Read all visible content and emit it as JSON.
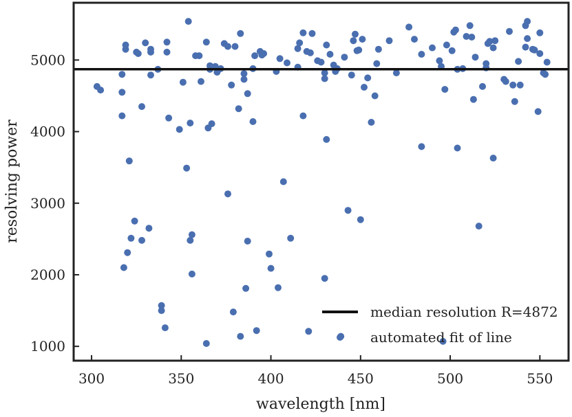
{
  "chart_data": {
    "type": "scatter",
    "title": "",
    "xlabel": "wavelength [nm]",
    "ylabel": "resolving power",
    "xlim": [
      290,
      566
    ],
    "ylim": [
      800,
      5800
    ],
    "xticks": [
      300,
      350,
      400,
      450,
      500,
      550
    ],
    "yticks": [
      1000,
      2000,
      3000,
      4000,
      5000
    ],
    "grid": false,
    "legend_position": "bottom-right",
    "colors": {
      "points": "#4a6fb0",
      "median_line": "#111111",
      "frame": "#222222"
    },
    "series": [
      {
        "name": "automated fit of line",
        "kind": "scatter",
        "points": [
          [
            303,
            4630
          ],
          [
            305,
            4580
          ],
          [
            317,
            4800
          ],
          [
            317,
            4550
          ],
          [
            317,
            4220
          ],
          [
            318,
            2100
          ],
          [
            319,
            5210
          ],
          [
            319,
            5150
          ],
          [
            320,
            2310
          ],
          [
            321,
            3590
          ],
          [
            322,
            2510
          ],
          [
            324,
            2750
          ],
          [
            325,
            5110
          ],
          [
            326,
            5090
          ],
          [
            328,
            2480
          ],
          [
            328,
            4350
          ],
          [
            330,
            5240
          ],
          [
            332,
            2650
          ],
          [
            333,
            5150
          ],
          [
            333,
            5110
          ],
          [
            333,
            4790
          ],
          [
            337,
            4870
          ],
          [
            339,
            1570
          ],
          [
            339,
            1500
          ],
          [
            341,
            1260
          ],
          [
            342,
            5110
          ],
          [
            342,
            5250
          ],
          [
            343,
            4190
          ],
          [
            349,
            4030
          ],
          [
            351,
            4690
          ],
          [
            353,
            3490
          ],
          [
            354,
            5540
          ],
          [
            355,
            4120
          ],
          [
            355,
            2480
          ],
          [
            356,
            2560
          ],
          [
            356,
            2010
          ],
          [
            358,
            5060
          ],
          [
            360,
            5060
          ],
          [
            361,
            4700
          ],
          [
            364,
            1040
          ],
          [
            364,
            5250
          ],
          [
            365,
            4050
          ],
          [
            366,
            4920
          ],
          [
            366,
            4870
          ],
          [
            367,
            4110
          ],
          [
            369,
            4910
          ],
          [
            370,
            4830
          ],
          [
            372,
            4880
          ],
          [
            374,
            5230
          ],
          [
            376,
            3130
          ],
          [
            376,
            5190
          ],
          [
            378,
            4650
          ],
          [
            379,
            1480
          ],
          [
            380,
            5190
          ],
          [
            382,
            4320
          ],
          [
            383,
            1140
          ],
          [
            383,
            5370
          ],
          [
            385,
            4730
          ],
          [
            385,
            4810
          ],
          [
            386,
            1810
          ],
          [
            387,
            4530
          ],
          [
            387,
            2470
          ],
          [
            390,
            4140
          ],
          [
            390,
            4880
          ],
          [
            391,
            5060
          ],
          [
            392,
            1220
          ],
          [
            394,
            5120
          ],
          [
            395,
            5070
          ],
          [
            396,
            5090
          ],
          [
            399,
            2290
          ],
          [
            400,
            2090
          ],
          [
            403,
            4840
          ],
          [
            404,
            1820
          ],
          [
            405,
            5020
          ],
          [
            407,
            3300
          ],
          [
            409,
            4960
          ],
          [
            411,
            2510
          ],
          [
            415,
            4900
          ],
          [
            415,
            5160
          ],
          [
            416,
            5240
          ],
          [
            418,
            5380
          ],
          [
            418,
            4220
          ],
          [
            420,
            5120
          ],
          [
            421,
            1210
          ],
          [
            422,
            5100
          ],
          [
            423,
            5370
          ],
          [
            426,
            4990
          ],
          [
            428,
            4970
          ],
          [
            430,
            4740
          ],
          [
            430,
            4820
          ],
          [
            430,
            1950
          ],
          [
            431,
            5210
          ],
          [
            431,
            3890
          ],
          [
            433,
            5080
          ],
          [
            435,
            4930
          ],
          [
            436,
            4840
          ],
          [
            437,
            4880
          ],
          [
            439,
            1140
          ],
          [
            441,
            5040
          ],
          [
            443,
            2900
          ],
          [
            445,
            4790
          ],
          [
            446,
            5270
          ],
          [
            447,
            5360
          ],
          [
            448,
            5130
          ],
          [
            449,
            5140
          ],
          [
            450,
            2770
          ],
          [
            451,
            5290
          ],
          [
            452,
            4620
          ],
          [
            454,
            4750
          ],
          [
            456,
            4130
          ],
          [
            458,
            4500
          ],
          [
            459,
            4950
          ],
          [
            460,
            5150
          ],
          [
            466,
            5270
          ],
          [
            470,
            4820
          ],
          [
            477,
            5460
          ],
          [
            480,
            5290
          ],
          [
            484,
            5080
          ],
          [
            484,
            3790
          ],
          [
            490,
            5170
          ],
          [
            494,
            4990
          ],
          [
            495,
            4910
          ],
          [
            496,
            1070
          ],
          [
            497,
            4590
          ],
          [
            498,
            5210
          ],
          [
            501,
            5130
          ],
          [
            502,
            5390
          ],
          [
            503,
            5420
          ],
          [
            504,
            3770
          ],
          [
            504,
            4870
          ],
          [
            507,
            4880
          ],
          [
            509,
            5330
          ],
          [
            511,
            5480
          ],
          [
            512,
            5320
          ],
          [
            513,
            4450
          ],
          [
            514,
            5040
          ],
          [
            516,
            2680
          ],
          [
            518,
            4630
          ],
          [
            520,
            4950
          ],
          [
            520,
            4890
          ],
          [
            521,
            5230
          ],
          [
            522,
            5260
          ],
          [
            524,
            3630
          ],
          [
            524,
            5170
          ],
          [
            525,
            5270
          ],
          [
            530,
            4730
          ],
          [
            531,
            4700
          ],
          [
            533,
            5400
          ],
          [
            535,
            4650
          ],
          [
            536,
            4420
          ],
          [
            538,
            4980
          ],
          [
            539,
            4650
          ],
          [
            542,
            5480
          ],
          [
            542,
            5180
          ],
          [
            543,
            5540
          ],
          [
            543,
            5300
          ],
          [
            546,
            5150
          ],
          [
            547,
            5140
          ],
          [
            549,
            4280
          ],
          [
            550,
            5380
          ],
          [
            550,
            5090
          ],
          [
            552,
            4820
          ],
          [
            553,
            4800
          ],
          [
            554,
            4970
          ]
        ]
      },
      {
        "name": "median resolution R=4872",
        "kind": "hline",
        "y": 4872
      }
    ]
  }
}
